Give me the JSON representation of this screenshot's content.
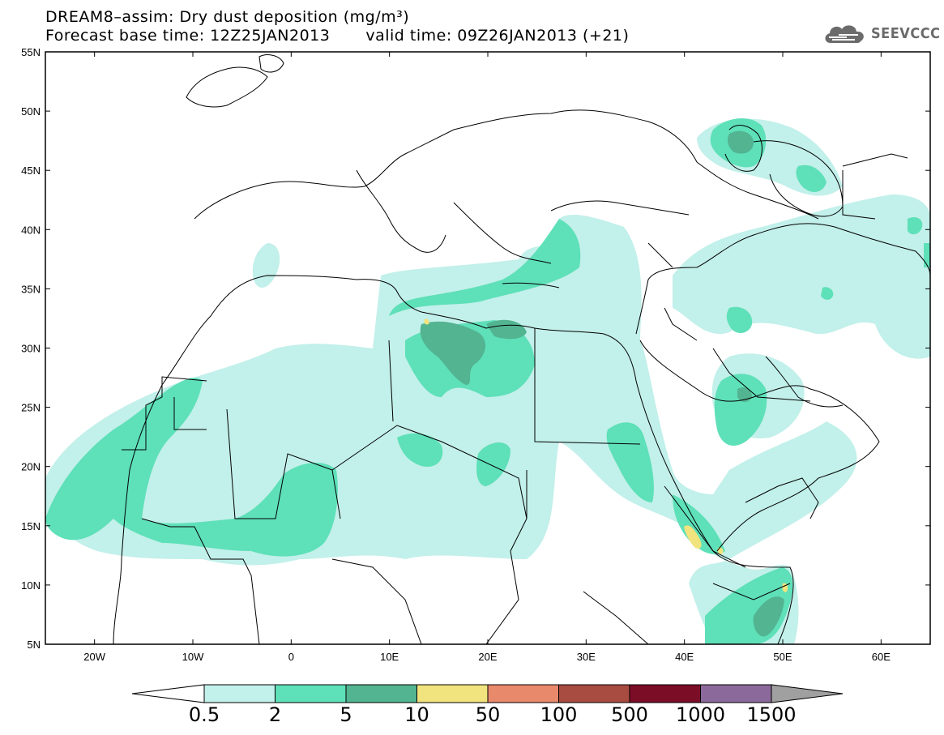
{
  "header": {
    "title_line1": "DREAM8–assim: Dry dust deposition (mg/m³)",
    "base_time": "Forecast base time: 12Z25JAN2013",
    "valid_time": "valid time: 09Z26JAN2013 (+21)"
  },
  "logo": {
    "text": "SEEVCCC",
    "icon": "cloud-logo-icon",
    "color": "#6b6b6b"
  },
  "map": {
    "projection": "lat-lon",
    "lon_range": [
      -25,
      65
    ],
    "lat_range": [
      5,
      55
    ],
    "lat_ticks": [
      "5N",
      "10N",
      "15N",
      "20N",
      "25N",
      "30N",
      "35N",
      "40N",
      "45N",
      "50N",
      "55N"
    ],
    "lon_ticks": [
      "20W",
      "10W",
      "0",
      "10E",
      "20E",
      "30E",
      "40E",
      "50E",
      "60E"
    ]
  },
  "colorbar": {
    "colors": [
      "#c2f0ea",
      "#5ee0b8",
      "#52b491",
      "#f1e37d",
      "#e8896b",
      "#a84b40",
      "#7c0d27",
      "#8b6a9b"
    ],
    "below_color": "#ffffff",
    "above_color": "#a0a0a0",
    "labels": [
      "0.5",
      "2",
      "5",
      "10",
      "50",
      "100",
      "500",
      "1000",
      "1500"
    ]
  }
}
